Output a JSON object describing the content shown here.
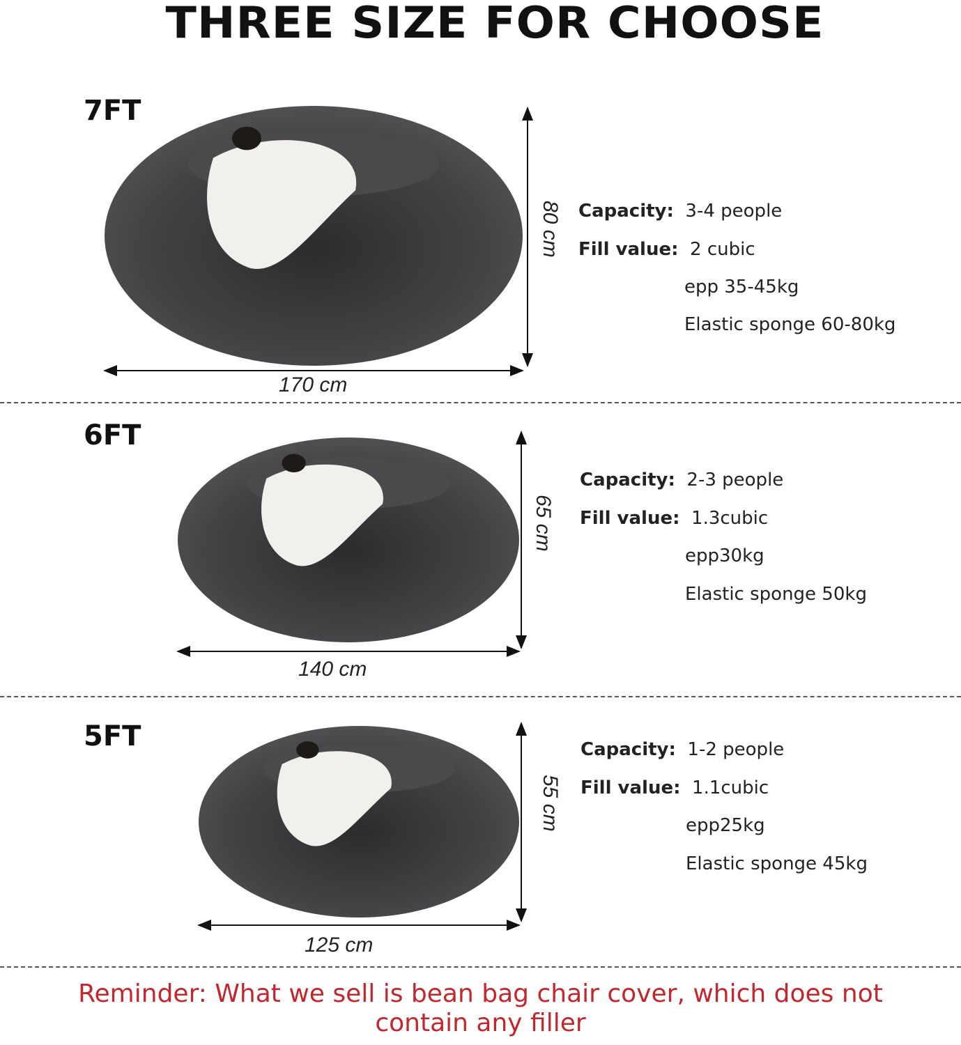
{
  "title": "THREE SIZE FOR CHOOSE",
  "sizes": [
    {
      "label": "7FT",
      "height": "80 cm",
      "width": "170 cm",
      "capacity_label": "Capacity:",
      "capacity": "3-4 people",
      "fill_label": "Fill value:",
      "fill": "2 cubic",
      "epp": "epp 35-45kg",
      "sponge": "Elastic sponge 60-80kg"
    },
    {
      "label": "6FT",
      "height": "65 cm",
      "width": "140 cm",
      "capacity_label": "Capacity:",
      "capacity": "2-3 people",
      "fill_label": "Fill value:",
      "fill": "1.3cubic",
      "epp": "epp30kg",
      "sponge": "Elastic sponge 50kg"
    },
    {
      "label": "5FT",
      "height": "55 cm",
      "width": "125 cm",
      "capacity_label": "Capacity:",
      "capacity": "1-2 people",
      "fill_label": "Fill value:",
      "fill": "1.1cubic",
      "epp": "epp25kg",
      "sponge": "Elastic sponge 45kg"
    }
  ],
  "reminder": [
    "Reminder: What we sell is bean bag chair cover, which does not",
    "contain any filler"
  ],
  "colors": {
    "reminder": "#c3272d",
    "bag": "#3c3c3e",
    "blanket": "#f2f0ec"
  }
}
